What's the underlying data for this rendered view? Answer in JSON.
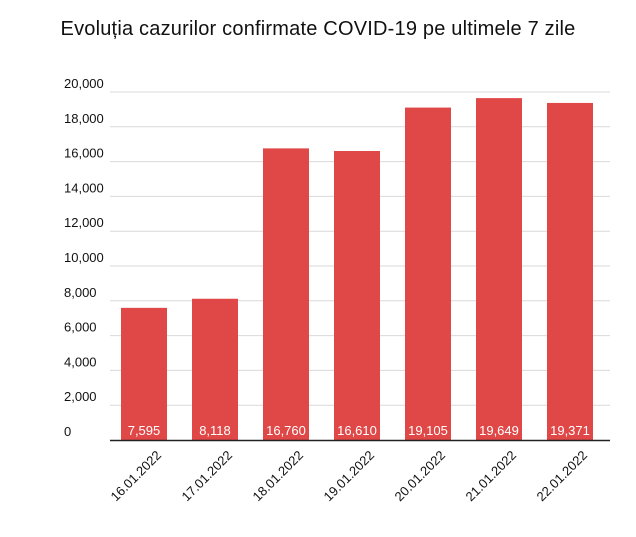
{
  "chart_data": {
    "type": "bar",
    "title": "Evoluția cazurilor confirmate COVID-19 pe ultimele 7 zile",
    "xlabel": "",
    "ylabel": "",
    "categories": [
      "16.01.2022",
      "17.01.2022",
      "18.01.2022",
      "19.01.2022",
      "20.01.2022",
      "21.01.2022",
      "22.01.2022"
    ],
    "values": [
      7595,
      8118,
      16760,
      16610,
      19105,
      19649,
      19371
    ],
    "data_labels": [
      "7,595",
      "8,118",
      "16,760",
      "16,610",
      "19,105",
      "19,649",
      "19,371"
    ],
    "ylim": [
      0,
      20000
    ],
    "yticks": [
      0,
      2000,
      4000,
      6000,
      8000,
      10000,
      12000,
      14000,
      16000,
      18000,
      20000
    ],
    "ytick_labels": [
      "0",
      "2,000",
      "4,000",
      "6,000",
      "8,000",
      "10,000",
      "12,000",
      "14,000",
      "16,000",
      "18,000",
      "20,000"
    ],
    "grid": true,
    "legend": "none",
    "bar_color": "#e04848",
    "grid_color": "#d9d9d9",
    "axis_color": "#222222"
  }
}
